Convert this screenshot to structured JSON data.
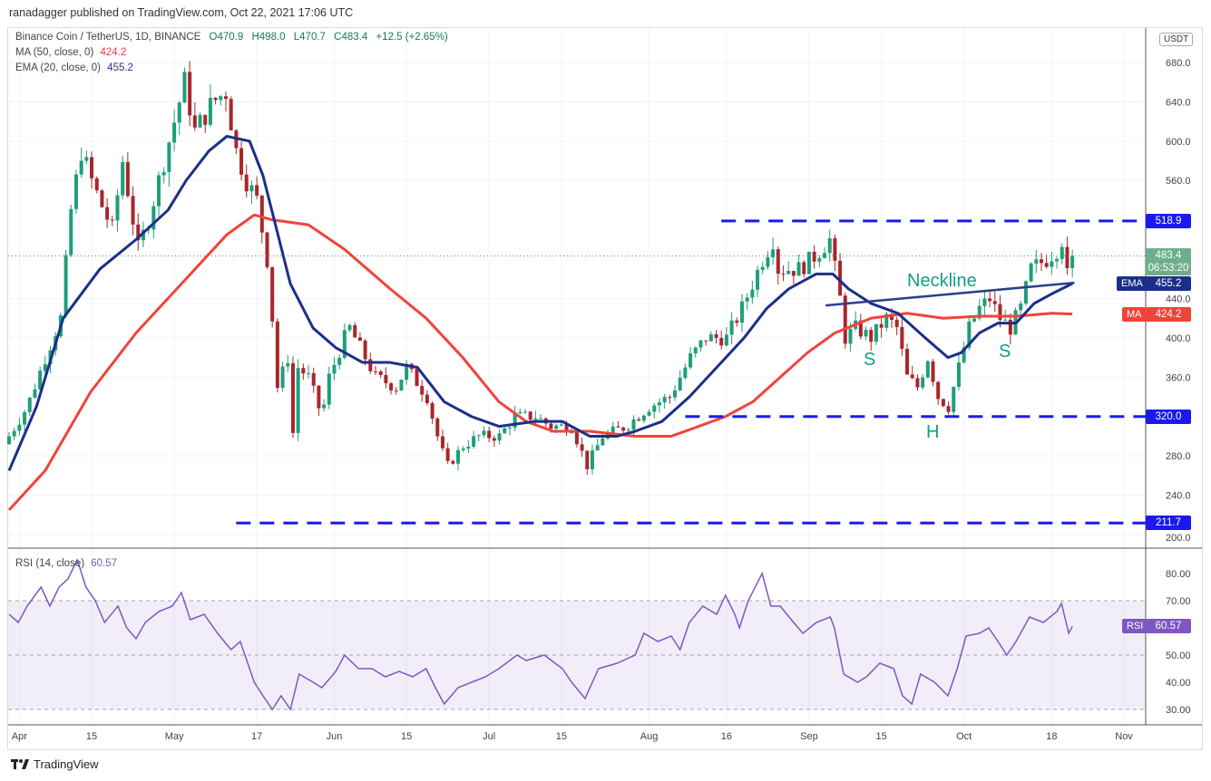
{
  "header": {
    "published": "ranadagger published on TradingView.com, Oct 22, 2021 17:06 UTC"
  },
  "legend": {
    "symbol": "Binance Coin / TetherUS, 1D, BINANCE",
    "open": "O470.9",
    "high": "H498.0",
    "low": "L470.7",
    "close": "C483.4",
    "change": "+12.5 (+2.65%)",
    "ma_label": "MA (50, close, 0)",
    "ma_value": "424.2",
    "ema_label": "EMA (20, close, 0)",
    "ema_value": "455.2",
    "rsi_label": "RSI (14, close)",
    "rsi_value": "60.57"
  },
  "currency_badge": "USDT",
  "footer": {
    "brand": "TradingView"
  },
  "colors": {
    "up": "#1e9e7a",
    "down": "#a8262b",
    "ema": "#1b2f8a",
    "ma": "#f0443a",
    "levels": "#1a1aee",
    "annotation": "#139c8c",
    "rsi": "#7e57c2"
  },
  "price_labels": {
    "resistance": "518.9",
    "last": "483.4",
    "countdown": "06:53:20",
    "ema": "455.2",
    "ema_tag": "EMA",
    "ma": "424.2",
    "ma_tag": "MA",
    "support": "320.0",
    "low_support": "211.7",
    "rsi": "60.57",
    "rsi_tag": "RSI"
  },
  "annotations": {
    "neckline": "Neckline",
    "left_shoulder": "S",
    "head": "H",
    "right_shoulder": "S"
  },
  "chart_data": {
    "type": "candlestick",
    "title": "Binance Coin / TetherUS, 1D",
    "x_unit": "days since Mar 30, 2021",
    "ylim": [
      200,
      690
    ],
    "y_ticks": [
      "680.0",
      "640.0",
      "600.0",
      "560.0",
      "440.0",
      "400.0",
      "360.0",
      "280.0",
      "240.0",
      "200.0"
    ],
    "y_tick_values": [
      680,
      640,
      600,
      560,
      440,
      400,
      360,
      280,
      240,
      200
    ],
    "x_ticks": [
      {
        "day": 2,
        "label": "Apr"
      },
      {
        "day": 16,
        "label": "15"
      },
      {
        "day": 32,
        "label": "May"
      },
      {
        "day": 48,
        "label": "17"
      },
      {
        "day": 63,
        "label": "Jun"
      },
      {
        "day": 77,
        "label": "15"
      },
      {
        "day": 93,
        "label": "Jul"
      },
      {
        "day": 107,
        "label": "15"
      },
      {
        "day": 124,
        "label": "Aug"
      },
      {
        "day": 139,
        "label": "16"
      },
      {
        "day": 155,
        "label": "Sep"
      },
      {
        "day": 169,
        "label": "15"
      },
      {
        "day": 185,
        "label": "Oct"
      },
      {
        "day": 202,
        "label": "18"
      },
      {
        "day": 216,
        "label": "Nov"
      }
    ],
    "close_keypoints": [
      [
        0,
        300
      ],
      [
        3.5,
        330
      ],
      [
        7,
        380
      ],
      [
        10,
        420
      ],
      [
        12,
        530
      ],
      [
        14,
        590
      ],
      [
        16,
        560
      ],
      [
        17.5,
        540
      ],
      [
        20,
        510
      ],
      [
        22,
        580
      ],
      [
        25,
        490
      ],
      [
        27,
        520
      ],
      [
        31,
        600
      ],
      [
        34,
        660
      ],
      [
        36,
        610
      ],
      [
        39.5,
        640
      ],
      [
        42,
        650
      ],
      [
        44,
        590
      ],
      [
        46,
        560
      ],
      [
        48,
        540
      ],
      [
        50,
        480
      ],
      [
        51,
        420
      ],
      [
        52,
        350
      ],
      [
        54,
        380
      ],
      [
        54.5,
        270
      ],
      [
        56,
        370
      ],
      [
        58,
        360
      ],
      [
        60.6,
        320
      ],
      [
        62,
        360
      ],
      [
        65,
        400
      ],
      [
        66,
        410
      ],
      [
        68,
        390
      ],
      [
        71,
        360
      ],
      [
        75,
        350
      ],
      [
        77,
        370
      ],
      [
        81,
        340
      ],
      [
        83.5,
        290
      ],
      [
        85,
        270
      ],
      [
        88,
        290
      ],
      [
        91,
        300
      ],
      [
        95,
        300
      ],
      [
        98,
        320
      ],
      [
        102,
        320
      ],
      [
        105,
        310
      ],
      [
        109,
        310
      ],
      [
        112,
        270
      ],
      [
        115,
        300
      ],
      [
        119.5,
        310
      ],
      [
        124,
        330
      ],
      [
        128,
        340
      ],
      [
        132,
        380
      ],
      [
        135,
        400
      ],
      [
        139,
        400
      ],
      [
        142,
        430
      ],
      [
        146,
        480
      ],
      [
        148,
        500
      ],
      [
        149,
        470
      ],
      [
        153,
        470
      ],
      [
        155.5,
        480
      ],
      [
        159,
        500
      ],
      [
        161,
        440
      ],
      [
        162,
        400
      ],
      [
        164,
        410
      ],
      [
        167,
        400
      ],
      [
        170,
        420
      ],
      [
        172,
        410
      ],
      [
        174,
        360
      ],
      [
        176,
        350
      ],
      [
        178,
        380
      ],
      [
        180,
        340
      ],
      [
        182,
        330
      ],
      [
        184,
        370
      ],
      [
        186,
        410
      ],
      [
        188,
        430
      ],
      [
        190,
        440
      ],
      [
        192,
        420
      ],
      [
        194,
        410
      ],
      [
        196,
        430
      ],
      [
        198,
        470
      ],
      [
        201,
        480
      ],
      [
        203,
        490
      ],
      [
        204,
        500
      ],
      [
        205,
        470.9
      ],
      [
        206,
        483.4
      ]
    ],
    "ema20": [
      [
        0,
        265
      ],
      [
        5.3,
        330
      ],
      [
        10.5,
        420
      ],
      [
        17.6,
        470
      ],
      [
        24.6,
        500
      ],
      [
        30.8,
        530
      ],
      [
        34.3,
        560
      ],
      [
        38.7,
        590
      ],
      [
        42.2,
        605
      ],
      [
        46.6,
        600
      ],
      [
        49.2,
        565
      ],
      [
        54.5,
        455
      ],
      [
        58.9,
        410
      ],
      [
        63.3,
        390
      ],
      [
        68.5,
        375
      ],
      [
        73.8,
        375
      ],
      [
        79.1,
        370
      ],
      [
        84.3,
        335
      ],
      [
        89.6,
        320
      ],
      [
        94.9,
        310
      ],
      [
        101.9,
        315
      ],
      [
        107.2,
        315
      ],
      [
        112.5,
        300
      ],
      [
        117.8,
        300
      ],
      [
        121.3,
        305
      ],
      [
        126.5,
        315
      ],
      [
        131.8,
        340
      ],
      [
        137.1,
        370
      ],
      [
        142.4,
        400
      ],
      [
        146.8,
        430
      ],
      [
        151.1,
        450
      ],
      [
        156.4,
        465
      ],
      [
        159.6,
        465
      ],
      [
        162.6,
        450
      ],
      [
        167,
        435
      ],
      [
        172.2,
        425
      ],
      [
        177.5,
        400
      ],
      [
        181.9,
        380
      ],
      [
        184.5,
        385
      ],
      [
        188,
        405
      ],
      [
        191.6,
        415
      ],
      [
        195.1,
        415
      ],
      [
        198.6,
        435
      ],
      [
        202.1,
        445
      ],
      [
        206,
        455.2
      ]
    ],
    "ma50": [
      [
        0,
        225
      ],
      [
        7,
        265
      ],
      [
        15.8,
        345
      ],
      [
        24.6,
        405
      ],
      [
        33.4,
        455
      ],
      [
        42.2,
        505
      ],
      [
        47.5,
        525
      ],
      [
        51,
        520
      ],
      [
        58,
        515
      ],
      [
        65,
        490
      ],
      [
        73.8,
        450
      ],
      [
        80.8,
        420
      ],
      [
        87.9,
        380
      ],
      [
        94.9,
        335
      ],
      [
        100.2,
        315
      ],
      [
        105.4,
        305
      ],
      [
        112.5,
        305
      ],
      [
        121.3,
        300
      ],
      [
        128.3,
        300
      ],
      [
        133.6,
        310
      ],
      [
        138.8,
        320
      ],
      [
        144.1,
        335
      ],
      [
        149.4,
        360
      ],
      [
        154.7,
        385
      ],
      [
        160,
        405
      ],
      [
        167,
        420
      ],
      [
        174,
        425
      ],
      [
        181,
        420
      ],
      [
        188,
        422
      ],
      [
        195.1,
        422
      ],
      [
        202.1,
        425
      ],
      [
        206,
        424.2
      ]
    ],
    "levels": [
      {
        "value": 518.9,
        "from_day": 138
      },
      {
        "value": 320.0,
        "from_day": 131
      },
      {
        "value": 211.7,
        "from_day": 44
      }
    ],
    "neckline": [
      [
        158.2,
        433
      ],
      [
        206.4,
        456
      ]
    ],
    "rsi": {
      "ylim": [
        26,
        88
      ],
      "y_ticks": [
        "80.00",
        "70.00",
        "50.00",
        "40.00",
        "30.00"
      ],
      "y_tick_values": [
        80,
        70,
        50,
        40,
        30
      ],
      "band": [
        30,
        70
      ],
      "values": [
        [
          0,
          65
        ],
        [
          1.8,
          62
        ],
        [
          3.5,
          68
        ],
        [
          6.2,
          75
        ],
        [
          7.9,
          68
        ],
        [
          9.7,
          75
        ],
        [
          11.4,
          78
        ],
        [
          13.2,
          85
        ],
        [
          14.9,
          75
        ],
        [
          16.7,
          70
        ],
        [
          18.5,
          62
        ],
        [
          21.1,
          68
        ],
        [
          22.8,
          60
        ],
        [
          24.6,
          56
        ],
        [
          26.4,
          62
        ],
        [
          29,
          66
        ],
        [
          31.6,
          68
        ],
        [
          33.4,
          73
        ],
        [
          35.1,
          63
        ],
        [
          37.8,
          65
        ],
        [
          40.4,
          58
        ],
        [
          43,
          52
        ],
        [
          44.8,
          55
        ],
        [
          47.5,
          40
        ],
        [
          49.2,
          35
        ],
        [
          51,
          30
        ],
        [
          52.7,
          35
        ],
        [
          54.5,
          30
        ],
        [
          56.2,
          43
        ],
        [
          58.9,
          40
        ],
        [
          60.6,
          38
        ],
        [
          63.3,
          44
        ],
        [
          65,
          50
        ],
        [
          67.7,
          45
        ],
        [
          70.3,
          45
        ],
        [
          72.9,
          42
        ],
        [
          75.6,
          44
        ],
        [
          78.2,
          42
        ],
        [
          80.8,
          45
        ],
        [
          82.6,
          38
        ],
        [
          84.3,
          32
        ],
        [
          87,
          38
        ],
        [
          89.6,
          40
        ],
        [
          92.3,
          42
        ],
        [
          94.9,
          45
        ],
        [
          98.4,
          50
        ],
        [
          100.2,
          48
        ],
        [
          103.7,
          50
        ],
        [
          107.2,
          45
        ],
        [
          109,
          40
        ],
        [
          111.6,
          34
        ],
        [
          114.2,
          45
        ],
        [
          117.8,
          47
        ],
        [
          121.3,
          50
        ],
        [
          123,
          58
        ],
        [
          125.7,
          55
        ],
        [
          128.3,
          57
        ],
        [
          130,
          52
        ],
        [
          131.8,
          62
        ],
        [
          134.4,
          68
        ],
        [
          137.1,
          65
        ],
        [
          138.8,
          72
        ],
        [
          140.6,
          65
        ],
        [
          141.5,
          60
        ],
        [
          143.2,
          70
        ],
        [
          145.9,
          80
        ],
        [
          147.6,
          68
        ],
        [
          149.4,
          68
        ],
        [
          152,
          62
        ],
        [
          153.8,
          58
        ],
        [
          156.4,
          62
        ],
        [
          159.1,
          64
        ],
        [
          159.9,
          60
        ],
        [
          161.7,
          43
        ],
        [
          164.4,
          40
        ],
        [
          166.1,
          42
        ],
        [
          168.7,
          47
        ],
        [
          171.4,
          45
        ],
        [
          173.1,
          35
        ],
        [
          174.9,
          32
        ],
        [
          176.6,
          43
        ],
        [
          179.3,
          40
        ],
        [
          181.9,
          35
        ],
        [
          183.7,
          45
        ],
        [
          185.4,
          57
        ],
        [
          188,
          58
        ],
        [
          189.8,
          60
        ],
        [
          191.6,
          55
        ],
        [
          193.3,
          50
        ],
        [
          195.1,
          55
        ],
        [
          197.7,
          64
        ],
        [
          200.4,
          62
        ],
        [
          203,
          66
        ],
        [
          203.9,
          69
        ],
        [
          205.3,
          58
        ],
        [
          206,
          60.57
        ]
      ]
    }
  }
}
